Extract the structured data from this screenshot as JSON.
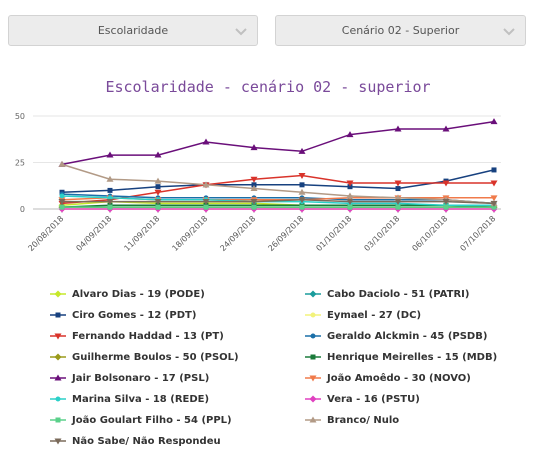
{
  "filters": {
    "left": {
      "value": "Escolaridade",
      "icon": "chevron-down-icon"
    },
    "right": {
      "value": "Cenário 02 - Superior",
      "icon": "chevron-down-icon"
    }
  },
  "chart_data": {
    "type": "line",
    "title": "Escolaridade - cenário 02 - superior",
    "xlabel": "",
    "ylabel": "",
    "ylim": [
      0,
      50
    ],
    "yticks": [
      0,
      25,
      50
    ],
    "grid": true,
    "legend_position": "bottom",
    "categories": [
      "20/08/2018",
      "04/09/2018",
      "11/09/2018",
      "18/09/2018",
      "24/09/2018",
      "26/09/2018",
      "01/10/2018",
      "03/10/2018",
      "06/10/2018",
      "07/10/2018"
    ],
    "series": [
      {
        "name": "Alvaro Dias - 19 (PODE)",
        "color": "#c6e82a",
        "marker": "diamond",
        "values": [
          2,
          4,
          3,
          3,
          3,
          2,
          2,
          2,
          2,
          1
        ]
      },
      {
        "name": "Cabo Daciolo - 51 (PATRI)",
        "color": "#1a9c9c",
        "marker": "diamond",
        "values": [
          1,
          1,
          1,
          1,
          1,
          1,
          1,
          1,
          1,
          1
        ]
      },
      {
        "name": "Ciro Gomes - 12 (PDT)",
        "color": "#17417f",
        "marker": "square",
        "values": [
          9,
          10,
          12,
          13,
          13,
          13,
          12,
          11,
          15,
          21
        ]
      },
      {
        "name": "Eymael - 27 (DC)",
        "color": "#f2f27a",
        "marker": "circle",
        "values": [
          0,
          0,
          0,
          0,
          0,
          0,
          0,
          0,
          0,
          0
        ]
      },
      {
        "name": "Fernando Haddad - 13 (PT)",
        "color": "#d9332a",
        "marker": "triangle-down",
        "values": [
          3,
          5,
          9,
          13,
          16,
          18,
          14,
          14,
          14,
          14
        ]
      },
      {
        "name": "Geraldo Alckmin - 45 (PSDB)",
        "color": "#1a6fa8",
        "marker": "circle",
        "values": [
          8,
          7,
          6,
          6,
          6,
          6,
          5,
          5,
          5,
          3
        ]
      },
      {
        "name": "Guilherme Boulos - 50 (PSOL)",
        "color": "#9a9a1a",
        "marker": "diamond",
        "values": [
          1,
          1,
          1,
          1,
          1,
          1,
          1,
          1,
          1,
          1
        ]
      },
      {
        "name": "Henrique Meirelles - 15 (MDB)",
        "color": "#1a7a3a",
        "marker": "square",
        "values": [
          1,
          2,
          2,
          2,
          2,
          2,
          2,
          2,
          2,
          1
        ]
      },
      {
        "name": "Jair Bolsonaro - 17 (PSL)",
        "color": "#6a0f7a",
        "marker": "triangle",
        "values": [
          24,
          29,
          29,
          36,
          33,
          31,
          40,
          43,
          43,
          47
        ]
      },
      {
        "name": "João Amoêdo - 30 (NOVO)",
        "color": "#f07a4a",
        "marker": "triangle-down",
        "values": [
          5,
          6,
          5,
          5,
          5,
          5,
          6,
          6,
          6,
          6
        ]
      },
      {
        "name": "Marina Silva - 18 (REDE)",
        "color": "#2ad0c8",
        "marker": "circle",
        "values": [
          7,
          6,
          5,
          5,
          4,
          4,
          3,
          3,
          2,
          2
        ]
      },
      {
        "name": "Vera - 16 (PSTU)",
        "color": "#e040c0",
        "marker": "diamond",
        "values": [
          0,
          0,
          0,
          0,
          0,
          0,
          0,
          0,
          0,
          0
        ]
      },
      {
        "name": "João Goulart Filho - 54 (PPL)",
        "color": "#5ad08a",
        "marker": "square",
        "values": [
          1,
          1,
          1,
          1,
          1,
          1,
          1,
          1,
          1,
          1
        ]
      },
      {
        "name": "Branco/ Nulo",
        "color": "#b29a86",
        "marker": "triangle",
        "values": [
          24,
          16,
          15,
          13,
          11,
          9,
          7,
          6,
          5,
          3
        ]
      },
      {
        "name": "Não Sabe/ Não Respondeu",
        "color": "#7a6a5a",
        "marker": "triangle-down",
        "values": [
          4,
          4,
          4,
          4,
          4,
          5,
          4,
          4,
          4,
          3
        ]
      }
    ]
  }
}
